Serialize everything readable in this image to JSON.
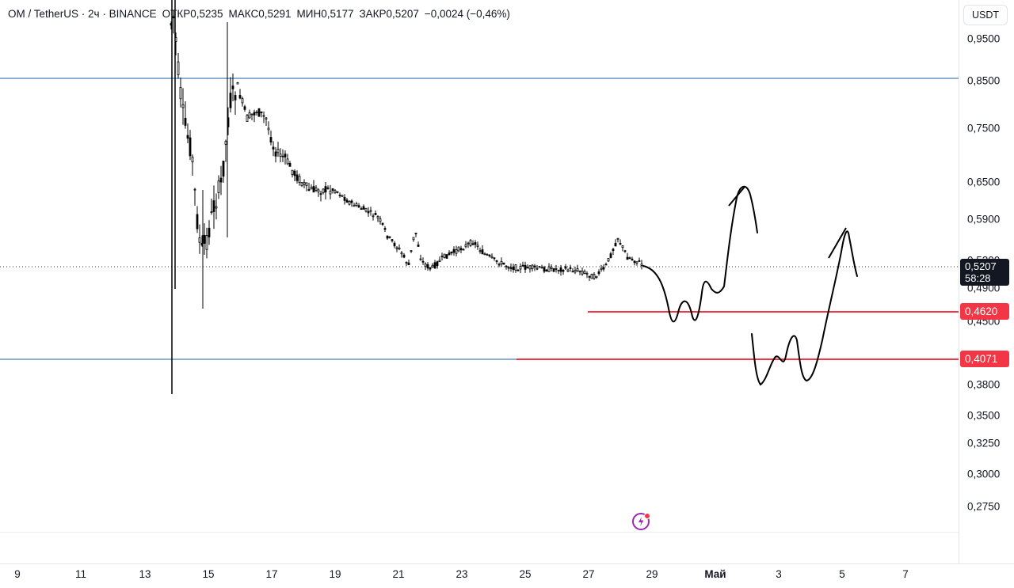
{
  "header": {
    "symbol": "OM / TetherUS · 2ч · BINANCE",
    "open_label": "ОТКР",
    "open_value": "0,5235",
    "high_label": "МАКС",
    "high_value": "0,5291",
    "low_label": "МИН",
    "low_value": "0,5177",
    "close_label": "ЗАКР",
    "close_value": "0,5207",
    "change": "−0,0024 (−0,46%)"
  },
  "currency_button": "USDT",
  "price_axis": {
    "ticks": [
      "0,9500",
      "0,8500",
      "0,7500",
      "0,6500",
      "0,5900",
      "0,5200",
      "0,4900",
      "0,4500",
      "0,3800",
      "0,3500",
      "0,3250",
      "0,3000",
      "0,2750"
    ]
  },
  "price_tags": {
    "current_price": "0,5207",
    "countdown": "58:28",
    "level_1": "0,4620",
    "level_2": "0,4071"
  },
  "time_axis": {
    "ticks": [
      "9",
      "11",
      "13",
      "15",
      "17",
      "19",
      "21",
      "23",
      "25",
      "27",
      "29",
      "Май",
      "3",
      "5",
      "7"
    ]
  },
  "colors": {
    "accent_red": "#f23645",
    "hline_blue": "#2962ff",
    "candle": "#000000"
  },
  "icons": {
    "bottom_center": "lightning-icon"
  }
}
